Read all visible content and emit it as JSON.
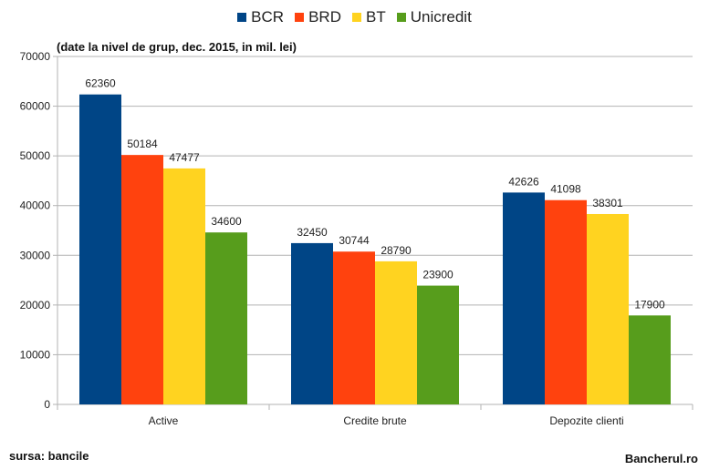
{
  "note": "(date la nivel de grup, dec. 2015, in mil. lei)",
  "source": "sursa: bancile",
  "brand": "Bancherul.ro",
  "chart_data": {
    "type": "bar",
    "categories": [
      "Active",
      "Credite brute",
      "Depozite clienti"
    ],
    "series": [
      {
        "name": "BCR",
        "color": "#004586",
        "values": [
          62360,
          32450,
          42626
        ]
      },
      {
        "name": "BRD",
        "color": "#ff420e",
        "values": [
          50184,
          30744,
          41098
        ]
      },
      {
        "name": "BT",
        "color": "#ffd320",
        "values": [
          47477,
          28790,
          38301
        ]
      },
      {
        "name": "Unicredit",
        "color": "#579d1c",
        "values": [
          34600,
          23900,
          17900
        ]
      }
    ],
    "ylim": [
      0,
      70000
    ],
    "yticks": [
      0,
      10000,
      20000,
      30000,
      40000,
      50000,
      60000,
      70000
    ],
    "grid": true,
    "legend_position": "top-center",
    "data_labels": true
  }
}
